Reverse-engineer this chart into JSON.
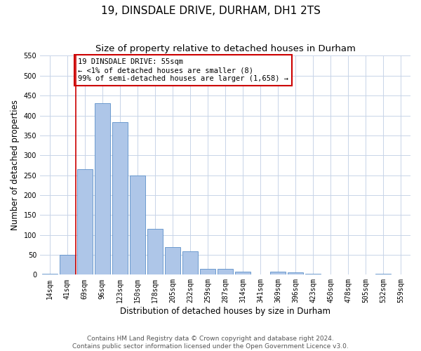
{
  "title": "19, DINSDALE DRIVE, DURHAM, DH1 2TS",
  "subtitle": "Size of property relative to detached houses in Durham",
  "xlabel": "Distribution of detached houses by size in Durham",
  "ylabel": "Number of detached properties",
  "bar_labels": [
    "14sqm",
    "41sqm",
    "69sqm",
    "96sqm",
    "123sqm",
    "150sqm",
    "178sqm",
    "205sqm",
    "232sqm",
    "259sqm",
    "287sqm",
    "314sqm",
    "341sqm",
    "369sqm",
    "396sqm",
    "423sqm",
    "450sqm",
    "478sqm",
    "505sqm",
    "532sqm",
    "559sqm"
  ],
  "bar_values": [
    2,
    50,
    265,
    430,
    383,
    250,
    115,
    70,
    58,
    15,
    15,
    8,
    0,
    7,
    5,
    3,
    0,
    0,
    0,
    2,
    0
  ],
  "bar_color": "#aec6e8",
  "bar_edge_color": "#5b8fc9",
  "grid_color": "#c8d4e8",
  "bg_color": "#ffffff",
  "vline_color": "#cc0000",
  "annotation_text": "19 DINSDALE DRIVE: 55sqm\n← <1% of detached houses are smaller (8)\n99% of semi-detached houses are larger (1,658) →",
  "annotation_box_color": "#ffffff",
  "annotation_box_edge_color": "#cc0000",
  "ylim": [
    0,
    550
  ],
  "yticks": [
    0,
    50,
    100,
    150,
    200,
    250,
    300,
    350,
    400,
    450,
    500,
    550
  ],
  "footer_text": "Contains HM Land Registry data © Crown copyright and database right 2024.\nContains public sector information licensed under the Open Government Licence v3.0.",
  "title_fontsize": 11,
  "subtitle_fontsize": 9.5,
  "axis_label_fontsize": 8.5,
  "tick_fontsize": 7,
  "annotation_fontsize": 7.5,
  "footer_fontsize": 6.5
}
